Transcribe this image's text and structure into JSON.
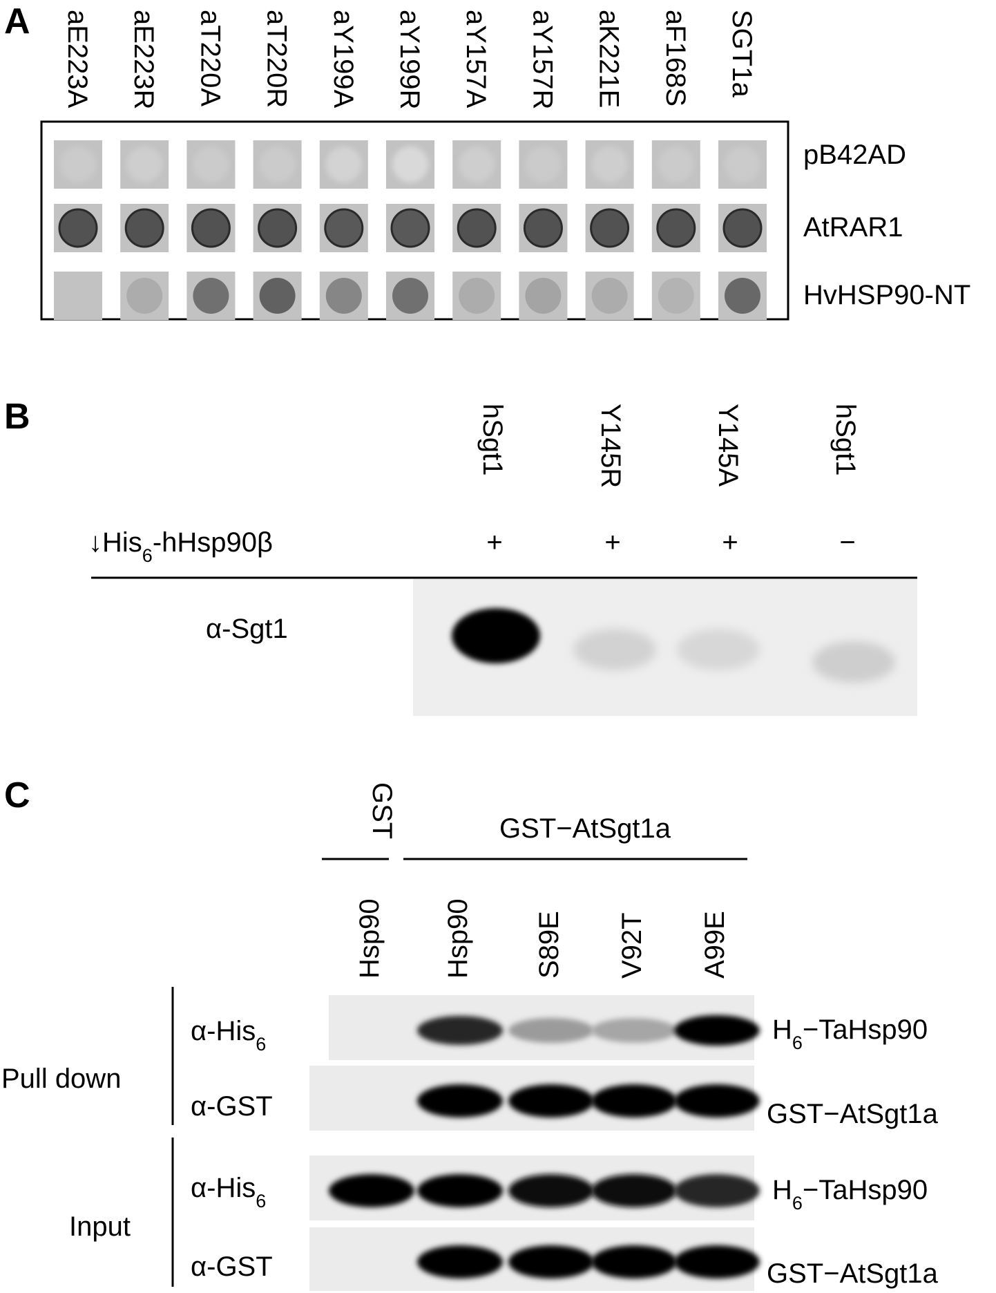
{
  "panel_a": {
    "letter": "A",
    "columns": [
      "aE223A",
      "aE223R",
      "aT220A",
      "aT220R",
      "aY199A",
      "aY199R",
      "aY157A",
      "aY157R",
      "aK221E",
      "aF168S",
      "SGT1a"
    ],
    "rows": [
      "pB42AD",
      "AtRAR1",
      "HvHSP90-NT"
    ],
    "spot_intensity": [
      [
        0.05,
        0.1,
        0.05,
        0.05,
        0.2,
        0.3,
        0.1,
        0.05,
        0.1,
        0.05,
        0.05
      ],
      [
        0.75,
        0.75,
        0.75,
        0.75,
        0.7,
        0.7,
        0.75,
        0.75,
        0.75,
        0.75,
        0.75
      ],
      [
        0.0,
        0.15,
        0.55,
        0.65,
        0.4,
        0.55,
        0.15,
        0.2,
        0.15,
        0.1,
        0.6
      ]
    ]
  },
  "panel_b": {
    "letter": "B",
    "lanes": [
      "hSgt1",
      "Y145R",
      "Y145A",
      "hSgt1"
    ],
    "pulldown_label_main": "His",
    "pulldown_label_sub": "6",
    "pulldown_label_rest": "-hHsp90β",
    "arrow": "↓",
    "signs": [
      "+",
      "+",
      "+",
      "−"
    ],
    "blot_label": "α-Sgt1",
    "band_intensity": [
      1.0,
      0.12,
      0.1,
      0.14
    ]
  },
  "panel_c": {
    "letter": "C",
    "group_gst": "GST",
    "group_fusion": "GST−AtSgt1a",
    "lanes": [
      "Hsp90",
      "Hsp90",
      "S89E",
      "V92T",
      "A99E"
    ],
    "section_pulldown": "Pull down",
    "section_input": "Input",
    "blots": [
      {
        "antibody_main": "α-His",
        "antibody_sub": "6",
        "protein_main": "H",
        "protein_sub": "6",
        "protein_rest": "−TaHsp90",
        "band_intensity": [
          0.0,
          0.85,
          0.35,
          0.3,
          1.0
        ]
      },
      {
        "antibody_main": "α-GST",
        "antibody_sub": "",
        "protein_main": "GST−AtSgt1a",
        "protein_sub": "",
        "protein_rest": "",
        "band_intensity": [
          0.0,
          1.0,
          1.0,
          1.0,
          1.0
        ]
      },
      {
        "antibody_main": "α-His",
        "antibody_sub": "6",
        "protein_main": "H",
        "protein_sub": "6",
        "protein_rest": "−TaHsp90",
        "band_intensity": [
          1.0,
          1.0,
          0.95,
          0.95,
          0.85
        ]
      },
      {
        "antibody_main": "α-GST",
        "antibody_sub": "",
        "protein_main": "GST−AtSgt1a",
        "protein_sub": "",
        "protein_rest": "",
        "band_intensity": [
          0.0,
          1.0,
          1.0,
          1.0,
          1.0
        ]
      }
    ]
  }
}
